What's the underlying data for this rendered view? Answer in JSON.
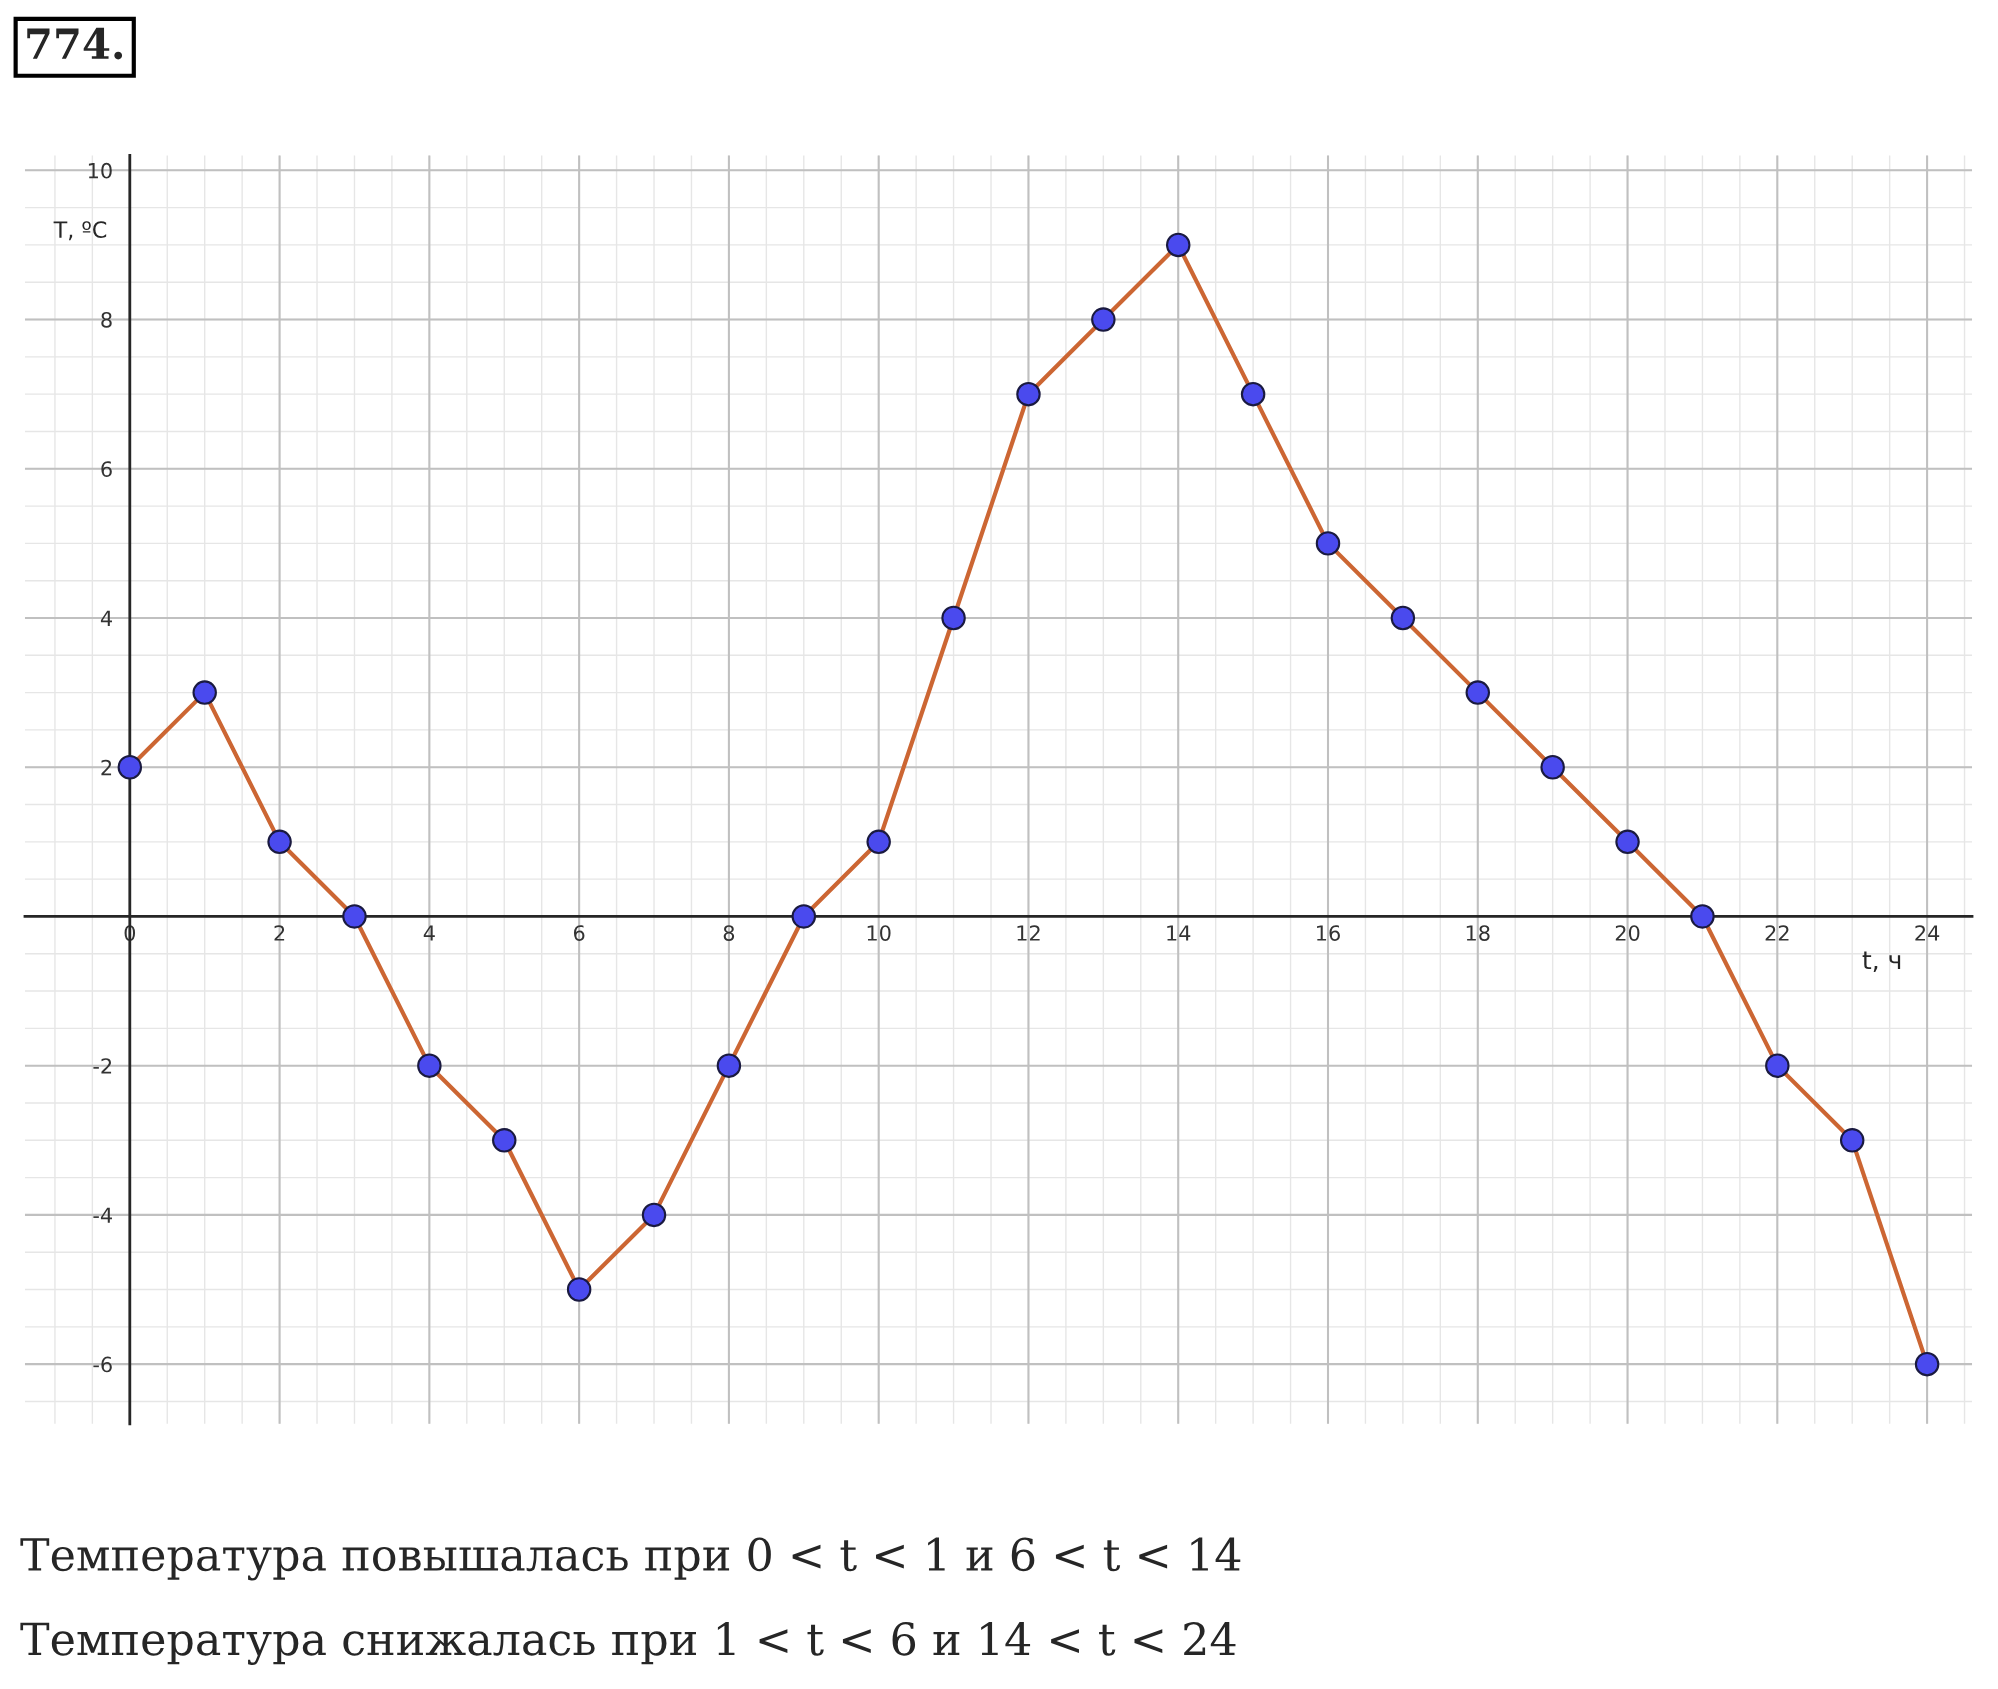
{
  "chart_data": {
    "type": "line",
    "title": "774.",
    "xlabel": "t, ч",
    "ylabel": "T, ºC",
    "x": [
      0,
      1,
      2,
      3,
      4,
      5,
      6,
      7,
      8,
      9,
      10,
      11,
      12,
      13,
      14,
      15,
      16,
      17,
      18,
      19,
      20,
      21,
      22,
      23,
      24
    ],
    "series": [
      {
        "color": "#cc6633",
        "values": [
          2,
          3,
          1,
          0,
          -2,
          -3,
          -5,
          -4,
          -2,
          0,
          1,
          4,
          7,
          8,
          9,
          7,
          5,
          4,
          3,
          2,
          1,
          0,
          -2,
          -3,
          -6
        ]
      }
    ],
    "marker": "circle",
    "line_style": "solid",
    "grid": true,
    "xlim": [
      -1.4,
      24.6
    ],
    "ylim": [
      -6.8,
      10.2
    ],
    "xticks": [
      0,
      2,
      4,
      6,
      8,
      10,
      12,
      14,
      16,
      18,
      20,
      22,
      24
    ],
    "yticks": [
      -6,
      -4,
      -2,
      2,
      4,
      6,
      8,
      10
    ],
    "annotations": [
      "Температура повышалась при 0 < t < 1 и 6 < t < 14",
      "Температура снижалась при 1 < t < 6 и 14 < t < 24"
    ]
  }
}
